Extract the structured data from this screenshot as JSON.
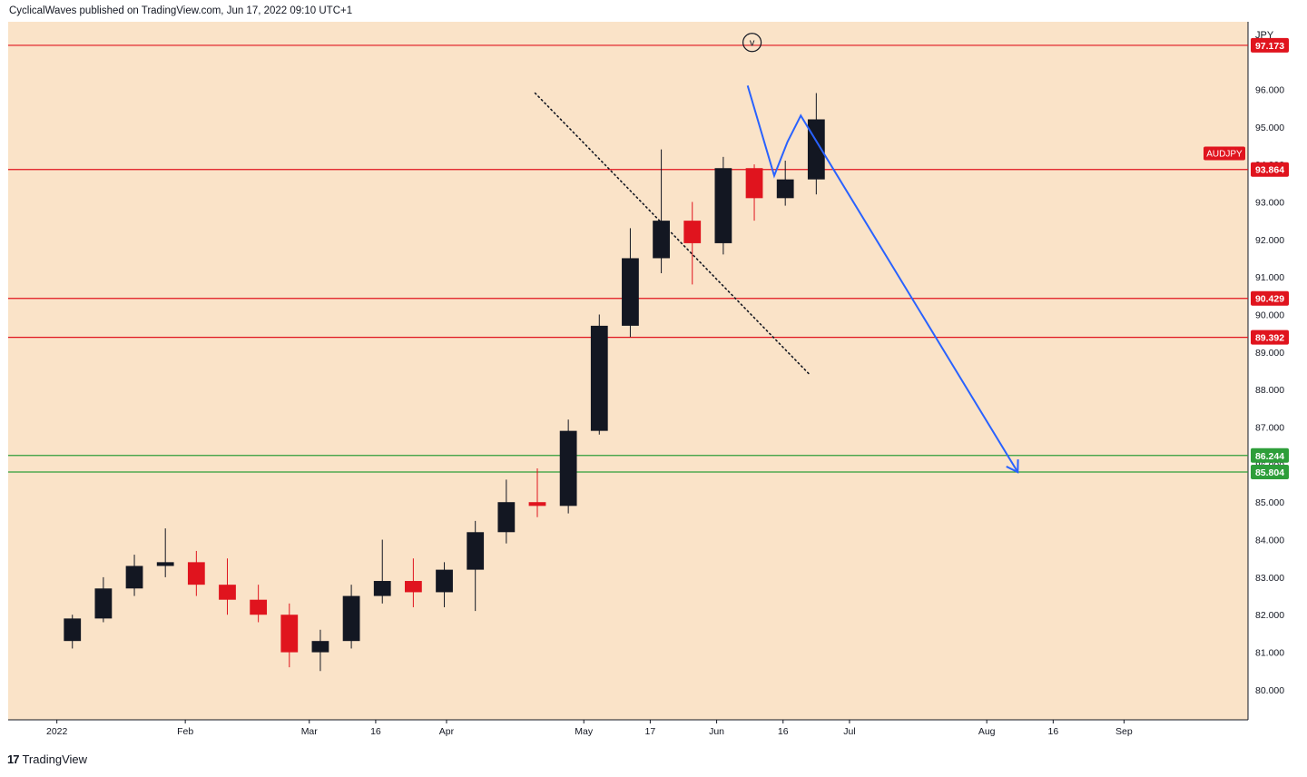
{
  "header": {
    "publish_line": "CyclicalWaves published on TradingView.com, Jun 17, 2022 09:10 UTC+1"
  },
  "footer": {
    "logo_glyph": "17",
    "brand": "TradingView"
  },
  "colors": {
    "background": "#fae3c8",
    "candle_up": "#131722",
    "candle_down": "#e0141e",
    "resistance_line": "#e0141e",
    "support_line": "#2e9e3a",
    "projection_line": "#2962ff",
    "trendline": "#131722"
  },
  "chart_data": {
    "type": "candlestick",
    "symbol_label": "AUDJPY",
    "currency": "JPY",
    "ylim": [
      79.2,
      97.8
    ],
    "y_ticks": [
      "80.000",
      "81.000",
      "82.000",
      "83.000",
      "84.000",
      "85.000",
      "86.000",
      "87.000",
      "88.000",
      "89.000",
      "90.000",
      "91.000",
      "92.000",
      "93.000",
      "94.000",
      "95.000",
      "96.000"
    ],
    "x_ticks": [
      "2022",
      "Feb",
      "Mar",
      "16",
      "Apr",
      "May",
      "17",
      "Jun",
      "16",
      "Jul",
      "Aug",
      "16",
      "Sep"
    ],
    "x_tick_dates": [
      "2022-01-03",
      "2022-02-01",
      "2022-03-01",
      "2022-03-16",
      "2022-04-01",
      "2022-05-02",
      "2022-05-17",
      "2022-06-01",
      "2022-06-16",
      "2022-07-01",
      "2022-08-01",
      "2022-08-16",
      "2022-09-01"
    ],
    "x_range": [
      "2021-12-23",
      "2022-09-29"
    ],
    "horizontal_levels": [
      {
        "value": 97.173,
        "label": "97.173",
        "kind": "resistance"
      },
      {
        "value": 93.864,
        "label": "93.864",
        "kind": "resistance",
        "tag": "AUDJPY"
      },
      {
        "value": 90.429,
        "label": "90.429",
        "kind": "resistance"
      },
      {
        "value": 89.392,
        "label": "89.392",
        "kind": "resistance"
      },
      {
        "value": 86.244,
        "label": "86.244",
        "kind": "support"
      },
      {
        "value": 85.804,
        "label": "85.804",
        "kind": "support"
      }
    ],
    "last_price": 93.864,
    "trendline_dotted": [
      {
        "date": "2022-04-21",
        "value": 95.9
      },
      {
        "date": "2022-06-22",
        "value": 88.4
      }
    ],
    "projection_path": [
      {
        "date": "2022-06-08",
        "value": 96.1
      },
      {
        "date": "2022-06-14",
        "value": 93.7
      },
      {
        "date": "2022-06-17",
        "value": 94.6
      },
      {
        "date": "2022-06-20",
        "value": 95.3
      },
      {
        "date": "2022-08-08",
        "value": 85.8
      }
    ],
    "top_marker": {
      "date": "2022-06-09",
      "value": 97.25,
      "label": "v"
    },
    "series": [
      {
        "date": "2022-01-03",
        "open": 81.3,
        "high": 82.0,
        "low": 81.1,
        "close": 81.9
      },
      {
        "date": "2022-01-10",
        "open": 81.9,
        "high": 83.0,
        "low": 81.8,
        "close": 82.7
      },
      {
        "date": "2022-01-17",
        "open": 82.7,
        "high": 83.6,
        "low": 82.5,
        "close": 83.3
      },
      {
        "date": "2022-01-24",
        "open": 83.3,
        "high": 84.3,
        "low": 83.0,
        "close": 83.4
      },
      {
        "date": "2022-01-31",
        "open": 83.4,
        "high": 83.7,
        "low": 82.5,
        "close": 82.8
      },
      {
        "date": "2022-02-07",
        "open": 82.8,
        "high": 83.5,
        "low": 82.0,
        "close": 82.4
      },
      {
        "date": "2022-02-14",
        "open": 82.4,
        "high": 82.8,
        "low": 81.8,
        "close": 82.0
      },
      {
        "date": "2022-02-21",
        "open": 82.0,
        "high": 82.3,
        "low": 80.6,
        "close": 81.0
      },
      {
        "date": "2022-02-28",
        "open": 81.0,
        "high": 81.6,
        "low": 80.5,
        "close": 81.3
      },
      {
        "date": "2022-03-07",
        "open": 81.3,
        "high": 82.8,
        "low": 81.1,
        "close": 82.5
      },
      {
        "date": "2022-03-14",
        "open": 82.5,
        "high": 84.0,
        "low": 82.3,
        "close": 82.9
      },
      {
        "date": "2022-03-21",
        "open": 82.9,
        "high": 83.5,
        "low": 82.2,
        "close": 82.6
      },
      {
        "date": "2022-03-28",
        "open": 82.6,
        "high": 83.4,
        "low": 82.2,
        "close": 83.2
      },
      {
        "date": "2022-04-04",
        "open": 83.2,
        "high": 84.5,
        "low": 82.1,
        "close": 84.2
      },
      {
        "date": "2022-04-11",
        "open": 84.2,
        "high": 85.6,
        "low": 83.9,
        "close": 85.0
      },
      {
        "date": "2022-04-18",
        "open": 85.0,
        "high": 85.9,
        "low": 84.6,
        "close": 84.9
      },
      {
        "date": "2022-04-25",
        "open": 84.9,
        "high": 87.2,
        "low": 84.7,
        "close": 86.9
      },
      {
        "date": "2022-05-02",
        "open": 86.9,
        "high": 90.0,
        "low": 86.8,
        "close": 89.7
      },
      {
        "date": "2022-05-09",
        "open": 89.7,
        "high": 92.3,
        "low": 89.4,
        "close": 91.5
      },
      {
        "date": "2022-05-16",
        "open": 91.5,
        "high": 94.4,
        "low": 91.1,
        "close": 92.5
      },
      {
        "date": "2022-05-23",
        "open": 92.5,
        "high": 93.0,
        "low": 90.8,
        "close": 91.9
      },
      {
        "date": "2022-05-30",
        "open": 91.9,
        "high": 94.2,
        "low": 91.6,
        "close": 93.9
      },
      {
        "date": "2022-06-06",
        "open": 93.9,
        "high": 94.0,
        "low": 92.5,
        "close": 93.1
      },
      {
        "date": "2022-06-13",
        "open": 93.1,
        "high": 94.1,
        "low": 92.9,
        "close": 93.6
      },
      {
        "date": "2022-06-20",
        "open": 93.6,
        "high": 95.9,
        "low": 93.2,
        "close": 95.2
      }
    ]
  }
}
